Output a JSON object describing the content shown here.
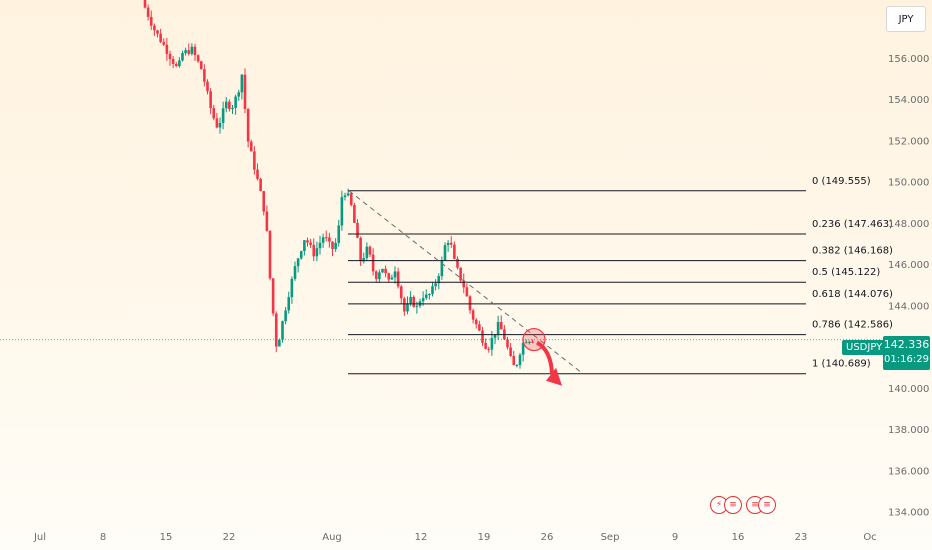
{
  "currency_button": "JPY",
  "symbol": "USDJPY",
  "current_price": "142.336",
  "countdown": "01:16:29",
  "colors": {
    "up": "#089981",
    "down": "#f23645",
    "accent": "#089981",
    "arrow": "#f23645"
  },
  "chart_data": {
    "type": "candlestick",
    "y_ticks": [
      "156.000",
      "154.000",
      "152.000",
      "150.000",
      "148.000",
      "146.000",
      "144.000",
      "142.000",
      "140.000",
      "138.000",
      "136.000",
      "134.000"
    ],
    "x_ticks": [
      "Jul",
      "8",
      "15",
      "22",
      "Aug",
      "12",
      "19",
      "26",
      "Sep",
      "9",
      "16",
      "23",
      "Oc"
    ],
    "ylim": [
      133.6,
      158.8
    ],
    "anchors": [
      [
        0.0,
        158.8
      ],
      [
        1.2,
        157.4
      ],
      [
        2.2,
        156.6
      ],
      [
        3.6,
        155.4
      ],
      [
        4.0,
        156.2
      ],
      [
        5.0,
        156.4
      ],
      [
        6.0,
        155.4
      ],
      [
        7.0,
        153.3
      ],
      [
        7.6,
        152.6
      ],
      [
        8.4,
        153.8
      ],
      [
        9.0,
        153.6
      ],
      [
        9.6,
        154.3
      ],
      [
        10.0,
        155.2
      ],
      [
        10.6,
        152.0
      ],
      [
        11.8,
        149.6
      ],
      [
        12.4,
        148.2
      ],
      [
        12.9,
        144.7
      ],
      [
        13.5,
        141.8
      ],
      [
        13.8,
        142.6
      ],
      [
        14.6,
        144.4
      ],
      [
        15.4,
        146.0
      ],
      [
        16.3,
        147.3
      ],
      [
        17.2,
        146.5
      ],
      [
        18.2,
        147.4
      ],
      [
        19.0,
        146.7
      ],
      [
        19.6,
        147.2
      ],
      [
        19.9,
        149.2
      ],
      [
        20.4,
        149.55
      ],
      [
        20.9,
        148.9
      ],
      [
        21.4,
        147.6
      ],
      [
        21.9,
        146.1
      ],
      [
        22.6,
        146.8
      ],
      [
        23.3,
        145.3
      ],
      [
        24.0,
        145.9
      ],
      [
        24.7,
        145.1
      ],
      [
        25.3,
        145.8
      ],
      [
        25.8,
        144.7
      ],
      [
        26.3,
        143.6
      ],
      [
        26.8,
        144.3
      ],
      [
        27.5,
        143.9
      ],
      [
        28.0,
        144.5
      ],
      [
        28.6,
        144.4
      ],
      [
        29.1,
        144.8
      ],
      [
        29.6,
        145.4
      ],
      [
        30.0,
        146.1
      ],
      [
        30.4,
        147.1
      ],
      [
        30.8,
        147.2
      ],
      [
        31.2,
        146.2
      ],
      [
        31.7,
        145.5
      ],
      [
        32.3,
        144.8
      ],
      [
        32.9,
        143.6
      ],
      [
        33.6,
        142.9
      ],
      [
        34.2,
        142.2
      ],
      [
        34.6,
        141.9
      ],
      [
        35.2,
        142.6
      ],
      [
        35.7,
        143.1
      ],
      [
        36.2,
        142.5
      ],
      [
        36.7,
        141.7
      ],
      [
        37.1,
        141.0
      ],
      [
        37.5,
        141.2
      ],
      [
        38.0,
        142.1
      ],
      [
        38.5,
        142.4
      ],
      [
        38.9,
        142.336
      ]
    ],
    "candles_per_day": 3.2,
    "fib_levels": [
      {
        "label": "0 (149.555)",
        "value": 149.555
      },
      {
        "label": "0.236 (147.463)",
        "value": 147.463
      },
      {
        "label": "0.382 (146.168)",
        "value": 146.168
      },
      {
        "label": "0.5 (145.122)",
        "value": 145.122
      },
      {
        "label": "0.618 (144.076)",
        "value": 144.076
      },
      {
        "label": "0.786 (142.586)",
        "value": 142.586
      },
      {
        "label": "1 (140.689)",
        "value": 140.689
      }
    ],
    "trendline": {
      "from": [
        20.4,
        149.555
      ],
      "to": [
        43.5,
        140.8
      ]
    },
    "arrow": {
      "from": [
        39.2,
        142.2
      ],
      "to": [
        41.3,
        140.3
      ]
    },
    "current_value": 142.336
  },
  "events": [
    {
      "name": "lightning",
      "glyph": "⚡"
    },
    {
      "name": "flag-us-1",
      "glyph": "≡"
    },
    {
      "name": "flag-us-2",
      "glyph": "≡"
    },
    {
      "name": "flag-us-3",
      "glyph": "≡"
    }
  ]
}
